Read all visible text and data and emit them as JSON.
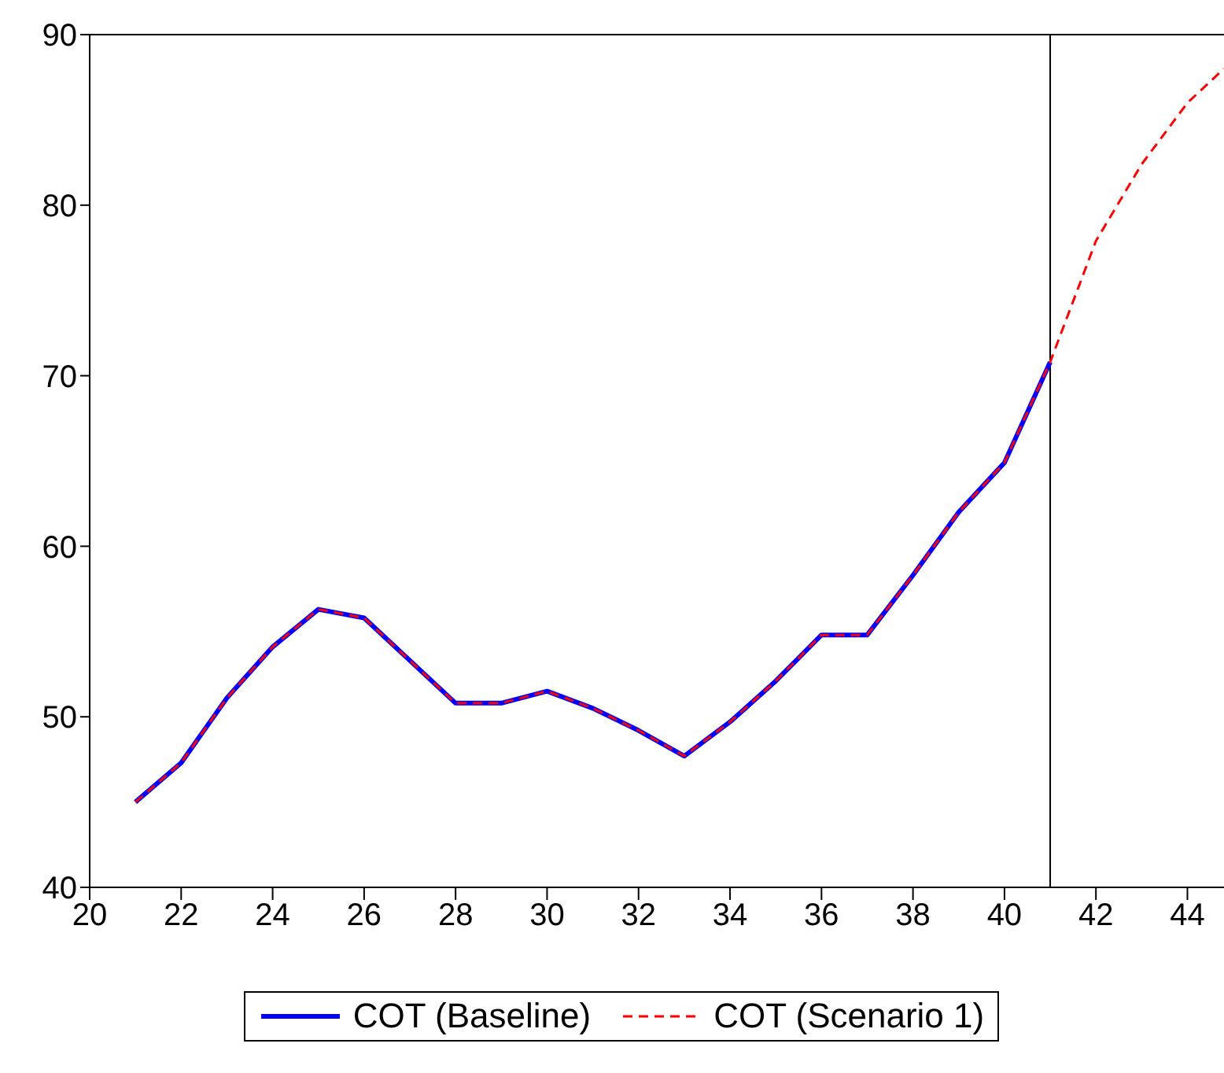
{
  "chart_data": {
    "type": "line",
    "xlim": [
      20,
      44.8
    ],
    "xticks": [
      20,
      22,
      24,
      26,
      28,
      30,
      32,
      34,
      36,
      38,
      40,
      42,
      44
    ],
    "ylim": [
      40,
      90
    ],
    "yticks": [
      40,
      50,
      60,
      70,
      80,
      90
    ],
    "grid": false,
    "legend": "bottom",
    "ref_lines": [
      {
        "axis": "x",
        "value": 41,
        "color": "#000000"
      }
    ],
    "series": [
      {
        "name": "COT (Baseline)",
        "color": "#0000ff",
        "line_style": "solid",
        "x": [
          21,
          22,
          23,
          24,
          25,
          26,
          27,
          28,
          29,
          30,
          31,
          32,
          33,
          34,
          35,
          36,
          37,
          38,
          39,
          40,
          41
        ],
        "values": [
          45.0,
          47.3,
          51.1,
          54.1,
          56.3,
          55.8,
          53.3,
          50.8,
          50.8,
          51.5,
          50.5,
          49.2,
          47.7,
          49.7,
          52.1,
          54.8,
          54.8,
          58.3,
          62.0,
          64.9,
          70.8
        ]
      },
      {
        "name": "COT (Scenario 1)",
        "color": "#ff0000",
        "line_style": "dashed",
        "x": [
          21,
          22,
          23,
          24,
          25,
          26,
          27,
          28,
          29,
          30,
          31,
          32,
          33,
          34,
          35,
          36,
          37,
          38,
          39,
          40,
          41,
          42,
          43,
          44,
          44.8
        ],
        "values": [
          45.0,
          47.3,
          51.1,
          54.1,
          56.3,
          55.8,
          53.3,
          50.8,
          50.8,
          51.5,
          50.5,
          49.2,
          47.7,
          49.7,
          52.1,
          54.8,
          54.8,
          58.3,
          62.0,
          64.9,
          70.8,
          77.9,
          82.4,
          86.0,
          88.0
        ]
      }
    ]
  }
}
